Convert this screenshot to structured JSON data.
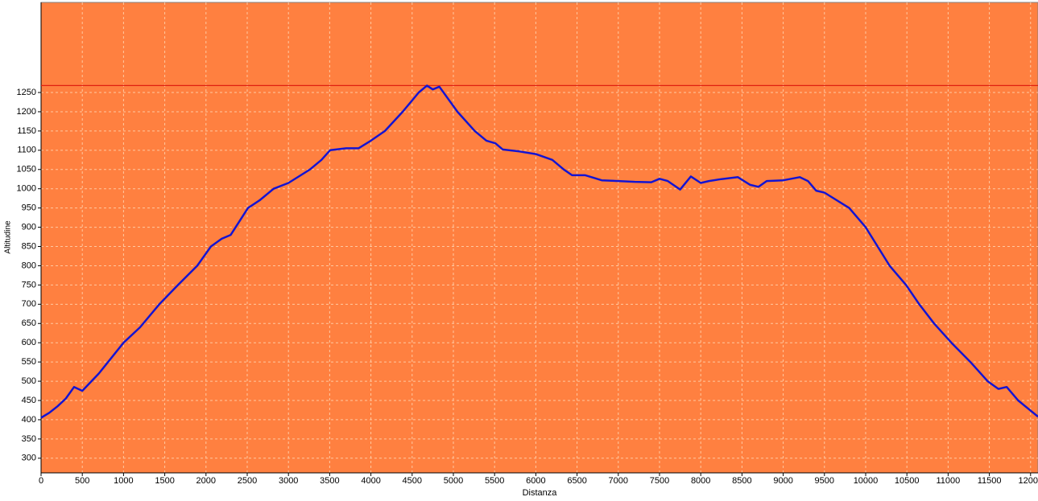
{
  "chart_data": {
    "type": "line",
    "xlabel": "Distanza",
    "ylabel": "Altitudine",
    "xlim": [
      0,
      12090
    ],
    "ylim": [
      262,
      1484
    ],
    "xticks": [
      0,
      500,
      1000,
      1500,
      2000,
      2500,
      3000,
      3500,
      4000,
      4500,
      5000,
      5500,
      6000,
      6500,
      7000,
      7500,
      8000,
      8500,
      9000,
      9500,
      10000,
      10500,
      11000,
      11500,
      12000
    ],
    "yticks": [
      300,
      350,
      400,
      450,
      500,
      550,
      600,
      650,
      700,
      750,
      800,
      850,
      900,
      950,
      1000,
      1050,
      1100,
      1150,
      1200,
      1250
    ],
    "grid": true,
    "background": "#ff8040",
    "reference_line": {
      "value": 1268,
      "color": "#e02010"
    },
    "x": [
      0,
      100,
      200,
      300,
      400,
      500,
      700,
      1000,
      1200,
      1435,
      1660,
      1895,
      2060,
      2190,
      2300,
      2510,
      2650,
      2820,
      3000,
      3260,
      3400,
      3505,
      3700,
      3850,
      4000,
      4170,
      4385,
      4580,
      4680,
      4750,
      4830,
      5050,
      5260,
      5400,
      5510,
      5600,
      5800,
      6000,
      6200,
      6340,
      6440,
      6600,
      6800,
      7000,
      7200,
      7400,
      7500,
      7600,
      7750,
      7880,
      8000,
      8100,
      8250,
      8450,
      8600,
      8700,
      8800,
      9000,
      9200,
      9300,
      9400,
      9500,
      9800,
      10000,
      10290,
      10490,
      10650,
      10830,
      11040,
      11270,
      11480,
      11610,
      11710,
      11850,
      12090
    ],
    "series": [
      {
        "color": "#1414d2",
        "values": [
          405,
          418,
          435,
          455,
          485,
          475,
          520,
          600,
          640,
          700,
          750,
          800,
          850,
          870,
          880,
          950,
          970,
          1000,
          1015,
          1050,
          1075,
          1100,
          1105,
          1105,
          1125,
          1150,
          1200,
          1250,
          1268,
          1258,
          1265,
          1200,
          1150,
          1125,
          1118,
          1102,
          1097,
          1090,
          1075,
          1050,
          1035,
          1035,
          1022,
          1020,
          1018,
          1017,
          1026,
          1020,
          998,
          1032,
          1015,
          1020,
          1025,
          1030,
          1010,
          1005,
          1020,
          1022,
          1030,
          1020,
          995,
          990,
          950,
          900,
          800,
          750,
          700,
          650,
          600,
          550,
          500,
          480,
          485,
          450,
          408
        ]
      }
    ]
  }
}
